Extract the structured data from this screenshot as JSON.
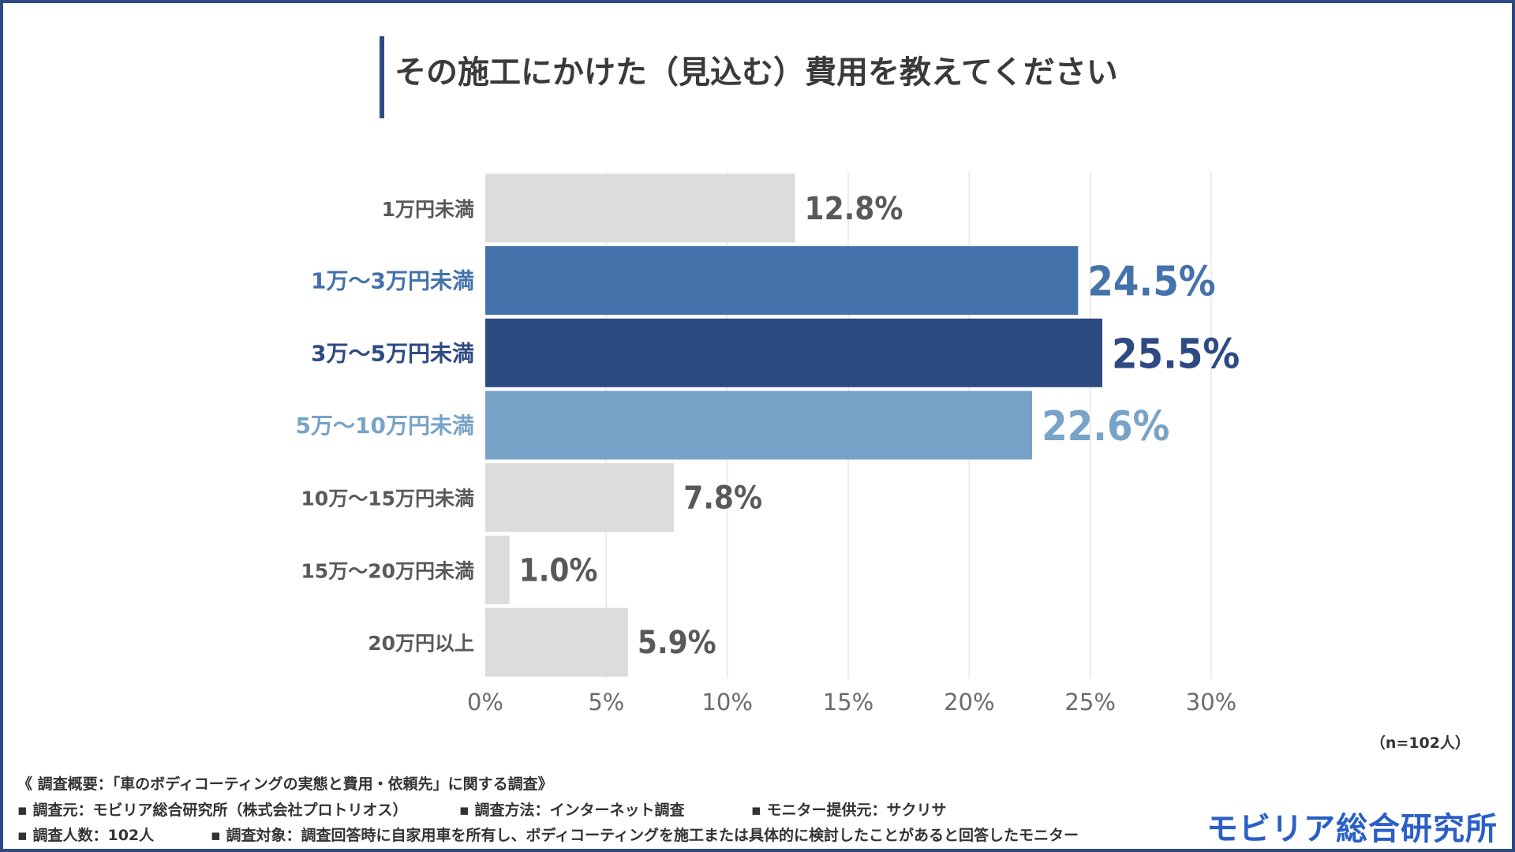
{
  "title": "その施工にかけた（見込む）費用を教えてください",
  "sample_note": "（n=102人）",
  "footer": {
    "line1": "《 調査概要：「車のボディコーティングの実態と費用・依頼先」に関する調査》",
    "line2a": "▪ 調査元：モビリア総合研究所（株式会社プロトリオス）",
    "line2b": "▪ 調査方法：インターネット調査",
    "line2c": "▪ モニター提供元：サクリサ",
    "line3a": "▪ 調査人数：102人",
    "line3b": "▪ 調査対象：調査回答時に自家用車を所有し、ボディコーティングを施工または具体的に検討したことがあると回答したモニター"
  },
  "logo_text": "モビリア総合研究所",
  "chart_data": {
    "type": "bar",
    "orientation": "horizontal",
    "categories": [
      "1万円未満",
      "1万～3万円未満",
      "3万～5万円未満",
      "5万～10万円未満",
      "10万～15万円未満",
      "15万～20万円未満",
      "20万円以上"
    ],
    "values": [
      12.8,
      24.5,
      25.5,
      22.6,
      7.8,
      1.0,
      5.9
    ],
    "value_labels": [
      "12.8%",
      "24.5%",
      "25.5%",
      "22.6%",
      "7.8%",
      "1.0%",
      "5.9%"
    ],
    "colors": [
      "#dcdcdc",
      "#4472ab",
      "#2e4a82",
      "#78a3c8",
      "#dcdcdc",
      "#dcdcdc",
      "#dcdcdc"
    ],
    "label_colors": [
      "#595959",
      "#4472ab",
      "#2e4a82",
      "#78a3c8",
      "#595959",
      "#595959",
      "#595959"
    ],
    "xlim": [
      0,
      30
    ],
    "xticks": [
      0,
      5,
      10,
      15,
      20,
      25,
      30
    ],
    "xtick_labels": [
      "0%",
      "5%",
      "10%",
      "15%",
      "20%",
      "25%",
      "30%"
    ],
    "grid": true
  }
}
